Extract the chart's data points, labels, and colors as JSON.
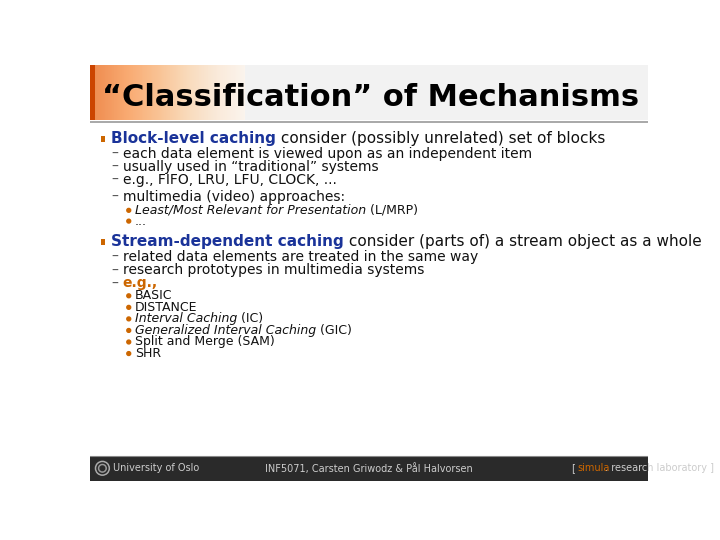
{
  "title": "“Classification” of Mechanisms",
  "title_color": "#000000",
  "slide_bg": "#ffffff",
  "title_bg_color": "#f0f0f0",
  "title_strip_color": "#cc4400",
  "title_strip_gradient_end": "#f8c0a0",
  "orange_color": "#cc6600",
  "blue_color": "#1a3399",
  "dark_color": "#111111",
  "gray_dash_color": "#555555",
  "footer_bg": "#2a2a2a",
  "footer_line_color": "#888888",
  "footer_text_color": "#cccccc",
  "simula_color": "#cc6600",
  "footer_text_left": "University of Oslo",
  "footer_text_mid": "INF5071, Carsten Griwodz & Pål Halvorsen",
  "title_fs": 22,
  "bullet_fs": 11,
  "sub_fs": 10,
  "subsub_fs": 9,
  "footer_fs": 7,
  "bullet1_colored": "Block-level caching",
  "bullet1_rest": " consider (possibly unrelated) set of blocks",
  "sub1a": "each data element is viewed upon as an independent item",
  "sub1b": "usually used in “traditional” systems",
  "sub1c": "e.g., FIFO, LRU, LFU, CLOCK, ...",
  "sub1d": "multimedia (video) approaches:",
  "sub1d_b1_italic": "Least/Most Relevant for Presentation",
  "sub1d_b1_rest": " (L/MRP)",
  "sub1d_b2": "...",
  "bullet2_colored": "Stream-dependent caching",
  "bullet2_rest": " consider (parts of) a stream object as a whole",
  "sub2a": "related data elements are treated in the same way",
  "sub2b": "research prototypes in multimedia systems",
  "sub2c_label": "e.g.,",
  "sub2c_bullets": [
    "BASIC",
    "DISTANCE",
    "Interval Caching",
    " (IC)",
    "Generalized Interval Caching",
    " (GIC)",
    "Split and Merge (SAM)",
    "SHR"
  ],
  "sub2c_italic": [
    false,
    false,
    true,
    false,
    true,
    false,
    false,
    false
  ]
}
